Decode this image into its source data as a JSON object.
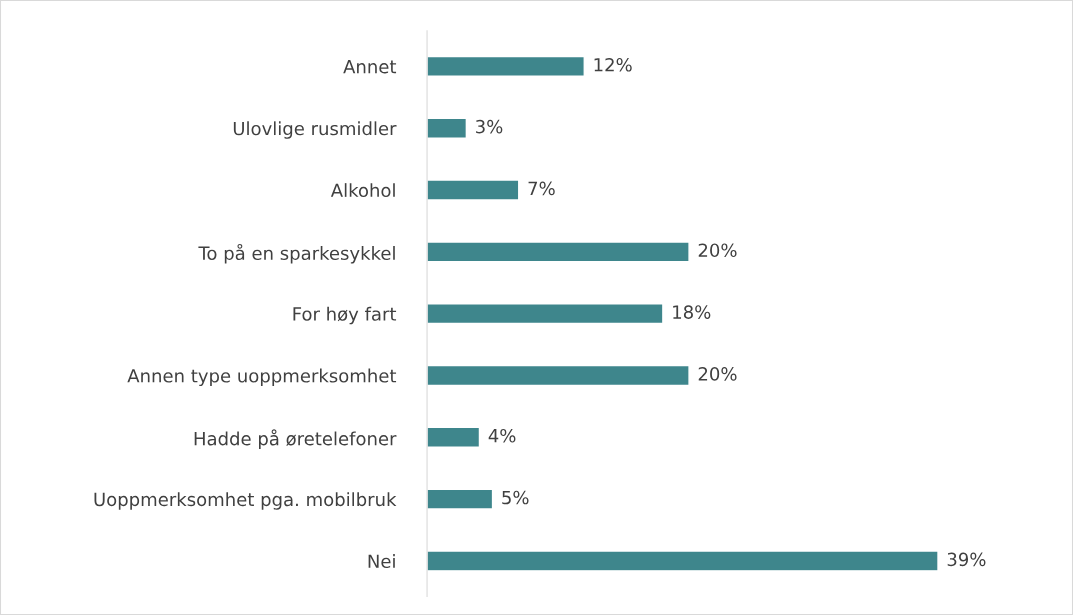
{
  "chart_data": {
    "type": "bar",
    "orientation": "horizontal",
    "categories": [
      "Annet",
      "Ulovlige rusmidler",
      "Alkohol",
      "To på en sparkesykkel",
      "For høy fart",
      "Annen type uoppmerksomhet",
      "Hadde på øretelefoner",
      "Uoppmerksomhet pga. mobilbruk",
      "Nei"
    ],
    "values": [
      12,
      3,
      7,
      20,
      18,
      20,
      4,
      5,
      39
    ],
    "value_labels": [
      "12%",
      "3%",
      "7%",
      "20%",
      "18%",
      "20%",
      "4%",
      "5%",
      "39%"
    ],
    "color": "#3e868c",
    "grid": false,
    "legend": false,
    "tick_labels": "y"
  }
}
